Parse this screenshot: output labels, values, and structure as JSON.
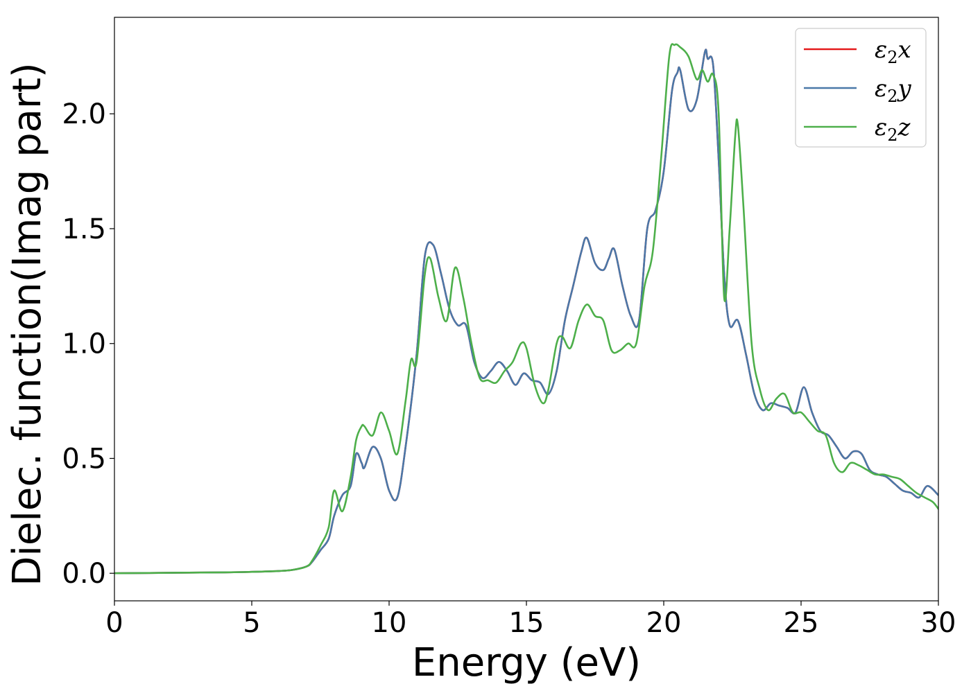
{
  "chart_data": {
    "type": "line",
    "title": "",
    "xlabel": "Energy (eV)",
    "ylabel": "Dielec. function(Imag part)",
    "xlim": [
      0,
      30
    ],
    "ylim": [
      -0.12,
      2.42
    ],
    "xticks": [
      0,
      5,
      10,
      15,
      20,
      25,
      30
    ],
    "xtick_labels": [
      "0",
      "5",
      "10",
      "15",
      "20",
      "25",
      "30"
    ],
    "yticks": [
      0.0,
      0.5,
      1.0,
      1.5,
      2.0
    ],
    "ytick_labels": [
      "0.0",
      "0.5",
      "1.0",
      "1.5",
      "2.0"
    ],
    "grid": false,
    "legend_position": "top-right",
    "series": [
      {
        "name": "ε2x",
        "legend_base": "ε",
        "legend_sub": "2",
        "legend_tail": "x",
        "color": "#e41a1c",
        "x": [
          0,
          2,
          4,
          5,
          6,
          6.5,
          7,
          7.2,
          7.5,
          7.8,
          8.0,
          8.3,
          8.6,
          8.8,
          9.0,
          9.1,
          9.4,
          9.7,
          10.0,
          10.3,
          10.6,
          11.0,
          11.3,
          11.6,
          11.9,
          12.2,
          12.5,
          12.8,
          13.1,
          13.4,
          13.7,
          14.0,
          14.3,
          14.6,
          14.9,
          15.2,
          15.5,
          15.8,
          16.1,
          16.4,
          16.7,
          17.0,
          17.2,
          17.5,
          17.8,
          18.0,
          18.2,
          18.5,
          18.8,
          19.1,
          19.4,
          19.7,
          20.0,
          20.3,
          20.5,
          20.6,
          20.9,
          21.2,
          21.5,
          21.6,
          21.8,
          22.0,
          22.2,
          22.4,
          22.7,
          23.0,
          23.3,
          23.6,
          23.9,
          24.2,
          24.5,
          24.8,
          25.1,
          25.4,
          25.7,
          26.0,
          26.3,
          26.6,
          26.9,
          27.2,
          27.5,
          27.8,
          28.1,
          28.4,
          28.7,
          29.0,
          29.3,
          29.6,
          30.0
        ],
        "y": [
          0,
          0.002,
          0.004,
          0.006,
          0.01,
          0.015,
          0.03,
          0.05,
          0.1,
          0.15,
          0.25,
          0.34,
          0.38,
          0.52,
          0.48,
          0.46,
          0.55,
          0.5,
          0.36,
          0.33,
          0.55,
          0.95,
          1.38,
          1.43,
          1.3,
          1.15,
          1.08,
          1.08,
          0.92,
          0.85,
          0.88,
          0.92,
          0.88,
          0.82,
          0.87,
          0.84,
          0.83,
          0.78,
          0.88,
          1.1,
          1.25,
          1.4,
          1.46,
          1.35,
          1.32,
          1.37,
          1.41,
          1.25,
          1.12,
          1.1,
          1.5,
          1.58,
          1.75,
          2.1,
          2.18,
          2.19,
          2.02,
          2.06,
          2.27,
          2.24,
          2.21,
          1.8,
          1.3,
          1.08,
          1.1,
          0.95,
          0.78,
          0.71,
          0.74,
          0.73,
          0.72,
          0.7,
          0.81,
          0.7,
          0.62,
          0.6,
          0.55,
          0.5,
          0.53,
          0.52,
          0.45,
          0.43,
          0.42,
          0.39,
          0.36,
          0.35,
          0.33,
          0.38,
          0.34
        ]
      },
      {
        "name": "ε2y",
        "legend_base": "ε",
        "legend_sub": "2",
        "legend_tail": "y",
        "color": "#4a78a8",
        "x": [
          0,
          2,
          4,
          5,
          6,
          6.5,
          7,
          7.2,
          7.5,
          7.8,
          8.0,
          8.3,
          8.6,
          8.8,
          9.0,
          9.1,
          9.4,
          9.7,
          10.0,
          10.3,
          10.6,
          11.0,
          11.3,
          11.6,
          11.9,
          12.2,
          12.5,
          12.8,
          13.1,
          13.4,
          13.7,
          14.0,
          14.3,
          14.6,
          14.9,
          15.2,
          15.5,
          15.8,
          16.1,
          16.4,
          16.7,
          17.0,
          17.2,
          17.5,
          17.8,
          18.0,
          18.2,
          18.5,
          18.8,
          19.1,
          19.4,
          19.7,
          20.0,
          20.3,
          20.5,
          20.6,
          20.9,
          21.2,
          21.5,
          21.6,
          21.8,
          22.0,
          22.2,
          22.4,
          22.7,
          23.0,
          23.3,
          23.6,
          23.9,
          24.2,
          24.5,
          24.8,
          25.1,
          25.4,
          25.7,
          26.0,
          26.3,
          26.6,
          26.9,
          27.2,
          27.5,
          27.8,
          28.1,
          28.4,
          28.7,
          29.0,
          29.3,
          29.6,
          30.0
        ],
        "y": [
          0,
          0.002,
          0.004,
          0.006,
          0.01,
          0.015,
          0.03,
          0.05,
          0.1,
          0.15,
          0.25,
          0.34,
          0.38,
          0.52,
          0.48,
          0.46,
          0.55,
          0.5,
          0.36,
          0.33,
          0.55,
          0.95,
          1.38,
          1.43,
          1.3,
          1.15,
          1.08,
          1.08,
          0.92,
          0.85,
          0.88,
          0.92,
          0.88,
          0.82,
          0.87,
          0.84,
          0.83,
          0.78,
          0.88,
          1.1,
          1.25,
          1.4,
          1.46,
          1.35,
          1.32,
          1.37,
          1.41,
          1.25,
          1.12,
          1.1,
          1.5,
          1.58,
          1.75,
          2.1,
          2.18,
          2.19,
          2.02,
          2.06,
          2.27,
          2.24,
          2.21,
          1.8,
          1.3,
          1.08,
          1.1,
          0.95,
          0.78,
          0.71,
          0.74,
          0.73,
          0.72,
          0.7,
          0.81,
          0.7,
          0.62,
          0.6,
          0.55,
          0.5,
          0.53,
          0.52,
          0.45,
          0.43,
          0.42,
          0.39,
          0.36,
          0.35,
          0.33,
          0.38,
          0.34
        ]
      },
      {
        "name": "ε2z",
        "legend_base": "ε",
        "legend_sub": "2",
        "legend_tail": "z",
        "color": "#4daf4a",
        "x": [
          0,
          2,
          4,
          5,
          6,
          6.5,
          7,
          7.2,
          7.5,
          7.8,
          8.0,
          8.3,
          8.6,
          8.8,
          9.0,
          9.1,
          9.4,
          9.7,
          10.0,
          10.3,
          10.6,
          10.8,
          11.0,
          11.3,
          11.5,
          11.8,
          12.1,
          12.4,
          12.7,
          13.0,
          13.3,
          13.6,
          13.9,
          14.2,
          14.5,
          14.8,
          15.0,
          15.3,
          15.6,
          15.8,
          16.1,
          16.3,
          16.6,
          16.9,
          17.2,
          17.5,
          17.8,
          18.1,
          18.4,
          18.7,
          19.0,
          19.3,
          19.6,
          19.9,
          20.2,
          20.4,
          20.6,
          20.9,
          21.2,
          21.4,
          21.6,
          21.8,
          22.0,
          22.2,
          22.4,
          22.6,
          22.7,
          22.9,
          23.2,
          23.5,
          23.8,
          24.1,
          24.4,
          24.7,
          25.0,
          25.3,
          25.6,
          25.9,
          26.2,
          26.5,
          26.8,
          27.1,
          27.4,
          27.7,
          28.0,
          28.3,
          28.6,
          28.9,
          29.2,
          29.5,
          29.8,
          30.0
        ],
        "y": [
          0,
          0.002,
          0.004,
          0.006,
          0.01,
          0.015,
          0.03,
          0.055,
          0.12,
          0.2,
          0.36,
          0.27,
          0.42,
          0.58,
          0.64,
          0.64,
          0.6,
          0.7,
          0.62,
          0.52,
          0.75,
          0.93,
          0.92,
          1.3,
          1.37,
          1.2,
          1.1,
          1.33,
          1.2,
          1.0,
          0.85,
          0.84,
          0.83,
          0.88,
          0.92,
          1.0,
          0.98,
          0.82,
          0.74,
          0.8,
          1.0,
          1.03,
          0.98,
          1.1,
          1.17,
          1.12,
          1.1,
          0.97,
          0.97,
          1.0,
          1.0,
          1.25,
          1.4,
          1.8,
          2.25,
          2.3,
          2.29,
          2.25,
          2.15,
          2.19,
          2.14,
          2.17,
          2.0,
          1.2,
          1.5,
          1.9,
          1.95,
          1.6,
          1.0,
          0.8,
          0.71,
          0.76,
          0.78,
          0.7,
          0.7,
          0.66,
          0.62,
          0.6,
          0.48,
          0.44,
          0.48,
          0.47,
          0.45,
          0.43,
          0.43,
          0.42,
          0.41,
          0.38,
          0.35,
          0.33,
          0.31,
          0.28
        ]
      }
    ]
  }
}
